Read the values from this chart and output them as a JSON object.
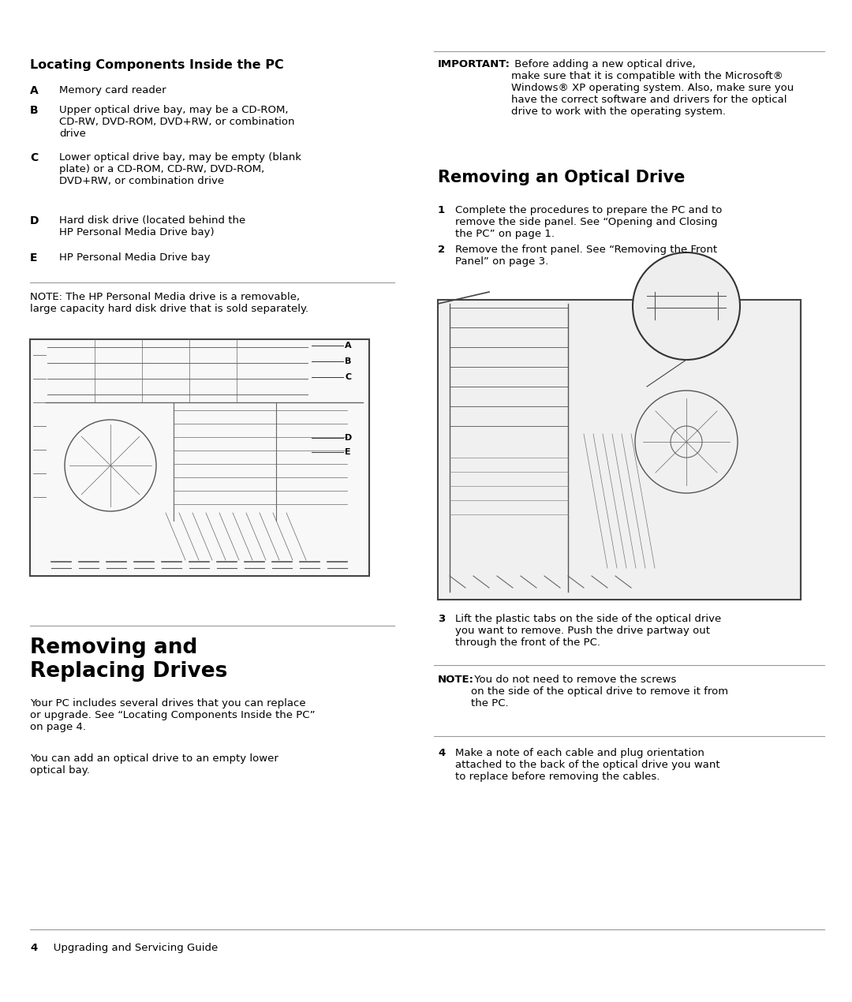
{
  "bg_color": "#ffffff",
  "text_color": "#000000",
  "page_width": 10.8,
  "page_height": 12.7,
  "left_col_title": "Locating Components Inside the PC",
  "left_col_items": [
    {
      "label": "A",
      "text": "Memory card reader"
    },
    {
      "label": "B",
      "text": "Upper optical drive bay, may be a CD-ROM,\nCD-RW, DVD-ROM, DVD+RW, or combination\ndrive"
    },
    {
      "label": "C",
      "text": "Lower optical drive bay, may be empty (blank\nplate) or a CD-ROM, CD-RW, DVD-ROM,\nDVD+RW, or combination drive"
    },
    {
      "label": "D",
      "text": "Hard disk drive (located behind the\nHP Personal Media Drive bay)"
    },
    {
      "label": "E",
      "text": "HP Personal Media Drive bay"
    }
  ],
  "note_text": "NOTE: The HP Personal Media drive is a removable,\nlarge capacity hard disk drive that is sold separately.",
  "right_col_important_bold": "IMPORTANT:",
  "right_col_important_rest": " Before adding a new optical drive,\nmake sure that it is compatible with the Microsoft®\nWindows® XP operating system. Also, make sure you\nhave the correct software and drivers for the optical\ndrive to work with the operating system.",
  "right_col_title": "Removing an Optical Drive",
  "right_col_steps": [
    {
      "num": "1",
      "text": "Complete the procedures to prepare the PC and to\nremove the side panel. See “Opening and Closing\nthe PC” on page 1."
    },
    {
      "num": "2",
      "text": "Remove the front panel. See “Removing the Front\nPanel” on page 3."
    }
  ],
  "section2_title": "Removing and\nReplacing Drives",
  "section2_para1": "Your PC includes several drives that you can replace\nor upgrade. See “Locating Components Inside the PC”\non page 4.",
  "section2_para2": "You can add an optical drive to an empty lower\noptical bay.",
  "right_col_steps2": [
    {
      "num": "3",
      "text": "Lift the plastic tabs on the side of the optical drive\nyou want to remove. Push the drive partway out\nthrough the front of the PC."
    },
    {
      "num": "4",
      "text": "Make a note of each cable and plug orientation\nattached to the back of the optical drive you want\nto replace before removing the cables."
    }
  ],
  "note2_bold": "NOTE:",
  "note2_rest": " You do not need to remove the screws\non the side of the optical drive to remove it from\nthe PC.",
  "footer_num": "4",
  "footer_text": "   Upgrading and Servicing Guide"
}
